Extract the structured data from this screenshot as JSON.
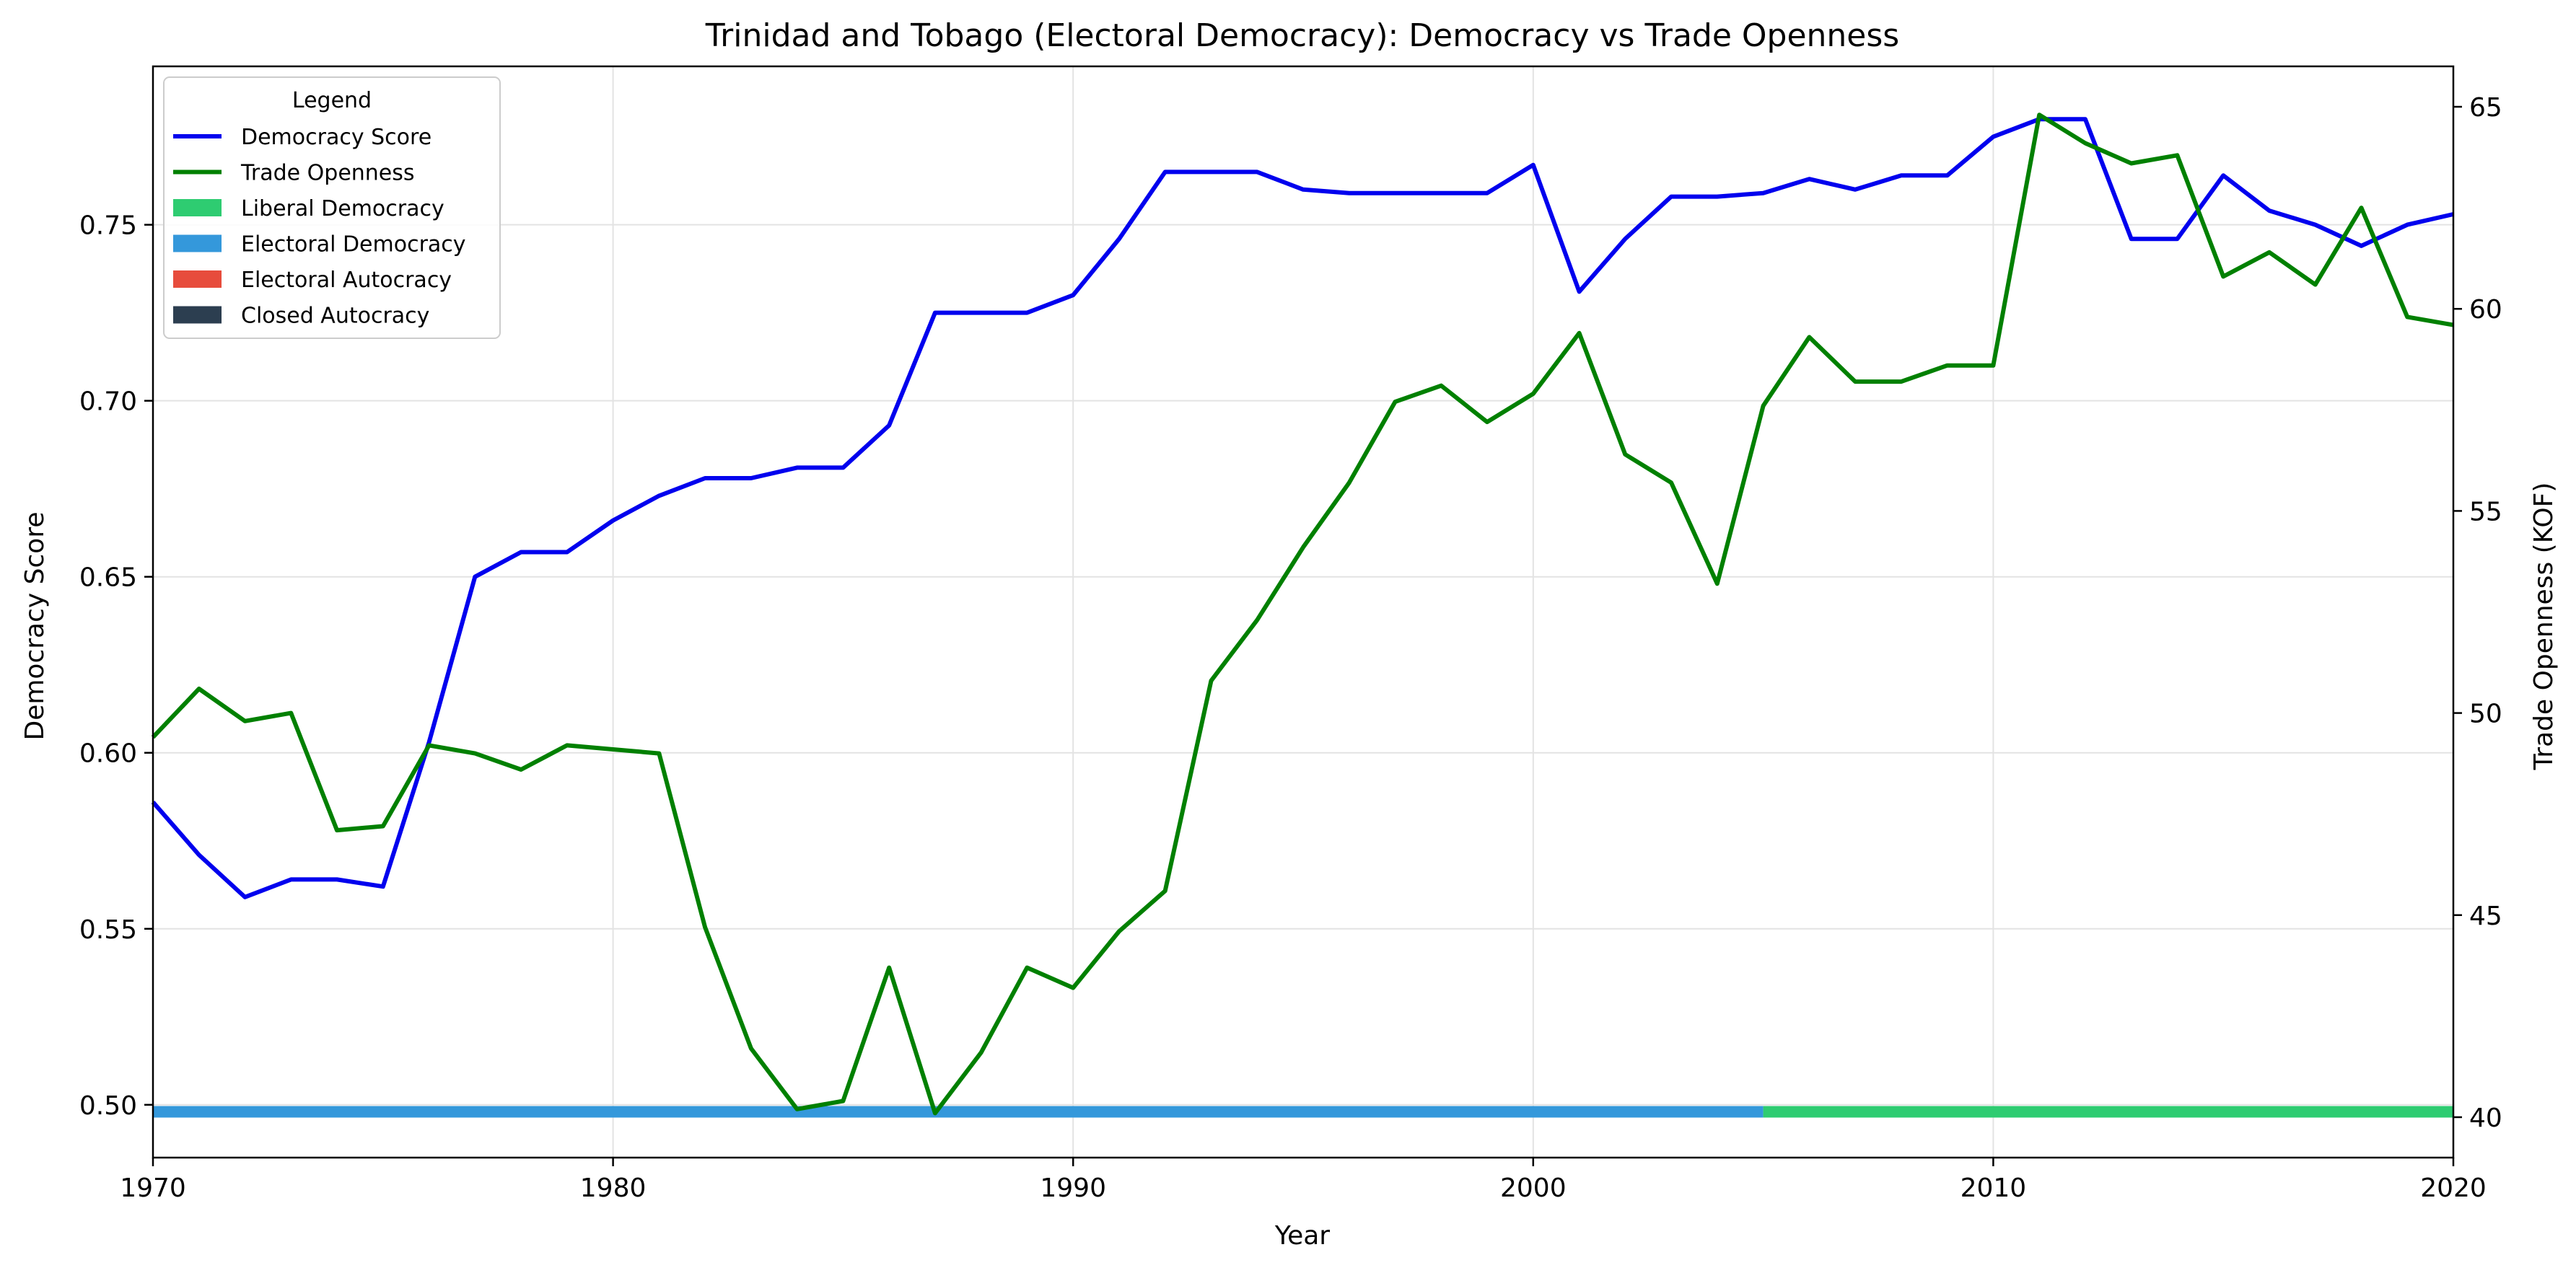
{
  "chart_data": {
    "type": "line",
    "title": "Trinidad and Tobago (Electoral Democracy): Democracy vs Trade Openness",
    "xlabel": "Year",
    "ylabel_left": "Democracy Score",
    "ylabel_right": "Trade Openness (KOF)",
    "xlim": [
      1970,
      2020
    ],
    "ylim_left": [
      0.485,
      0.795
    ],
    "ylim_right": [
      39.0,
      66.0
    ],
    "x_ticks": [
      1970,
      1980,
      1990,
      2000,
      2010,
      2020
    ],
    "y_left_ticks": [
      0.5,
      0.55,
      0.6,
      0.65,
      0.7,
      0.75
    ],
    "y_right_ticks": [
      40,
      45,
      50,
      55,
      60,
      65
    ],
    "grid": true,
    "legend_title": "Legend",
    "legend_position": "upper-left",
    "series": [
      {
        "name": "Democracy Score",
        "color": "#0000ee",
        "axis": "left",
        "x": [
          1970,
          1971,
          1972,
          1973,
          1974,
          1975,
          1976,
          1977,
          1978,
          1979,
          1980,
          1981,
          1982,
          1983,
          1984,
          1985,
          1986,
          1987,
          1988,
          1989,
          1990,
          1991,
          1992,
          1993,
          1994,
          1995,
          1996,
          1997,
          1998,
          1999,
          2000,
          2001,
          2002,
          2003,
          2004,
          2005,
          2006,
          2007,
          2008,
          2009,
          2010,
          2011,
          2012,
          2013,
          2014,
          2015,
          2016,
          2017,
          2018,
          2019,
          2020
        ],
        "values": [
          0.586,
          0.571,
          0.559,
          0.564,
          0.564,
          0.562,
          0.603,
          0.65,
          0.657,
          0.657,
          0.666,
          0.673,
          0.678,
          0.678,
          0.681,
          0.681,
          0.693,
          0.725,
          0.725,
          0.725,
          0.73,
          0.746,
          0.765,
          0.765,
          0.765,
          0.76,
          0.759,
          0.759,
          0.759,
          0.759,
          0.767,
          0.731,
          0.746,
          0.758,
          0.758,
          0.759,
          0.763,
          0.76,
          0.764,
          0.764,
          0.775,
          0.78,
          0.78,
          0.746,
          0.746,
          0.764,
          0.754,
          0.75,
          0.744,
          0.75,
          0.753
        ]
      },
      {
        "name": "Trade Openness",
        "color": "#008000",
        "axis": "right",
        "x": [
          1970,
          1971,
          1972,
          1973,
          1974,
          1975,
          1976,
          1977,
          1978,
          1979,
          1980,
          1981,
          1982,
          1983,
          1984,
          1985,
          1986,
          1987,
          1988,
          1989,
          1990,
          1991,
          1992,
          1993,
          1994,
          1995,
          1996,
          1997,
          1998,
          1999,
          2000,
          2001,
          2002,
          2003,
          2004,
          2005,
          2006,
          2007,
          2008,
          2009,
          2010,
          2011,
          2012,
          2013,
          2014,
          2015,
          2016,
          2017,
          2018,
          2019,
          2020
        ],
        "values": [
          49.4,
          50.6,
          49.8,
          50.0,
          47.1,
          47.2,
          49.2,
          49.0,
          48.6,
          49.2,
          49.1,
          49.0,
          44.7,
          41.7,
          40.2,
          40.4,
          43.7,
          40.1,
          41.6,
          43.7,
          43.2,
          44.6,
          45.6,
          50.8,
          52.3,
          54.1,
          55.7,
          57.7,
          58.1,
          57.2,
          57.9,
          59.4,
          56.4,
          55.7,
          53.2,
          57.6,
          59.3,
          58.2,
          58.2,
          58.6,
          58.6,
          64.8,
          64.1,
          63.6,
          63.8,
          60.8,
          61.4,
          60.6,
          62.5,
          59.8,
          59.6
        ]
      }
    ],
    "regime_band": {
      "y": 0.498,
      "segments": [
        {
          "start": 1970,
          "end": 2005,
          "regime": "Electoral Democracy"
        },
        {
          "start": 2005,
          "end": 2020,
          "regime": "Liberal Democracy"
        }
      ]
    },
    "regime_legend": [
      {
        "name": "Liberal Democracy",
        "color": "#2ecc71"
      },
      {
        "name": "Electoral Democracy",
        "color": "#3498db"
      },
      {
        "name": "Electoral Autocracy",
        "color": "#e74c3c"
      },
      {
        "name": "Closed Autocracy",
        "color": "#2c3e50"
      }
    ]
  }
}
